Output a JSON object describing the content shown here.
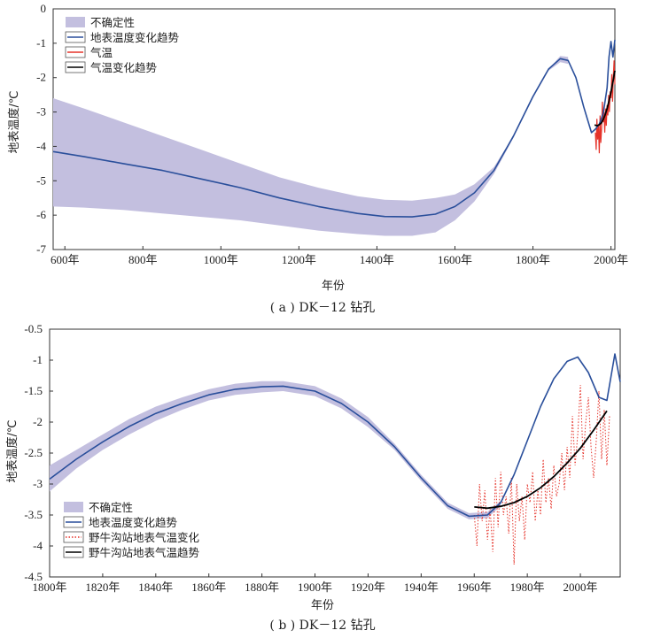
{
  "chart_data": [
    {
      "type": "line",
      "xlabel": "年份",
      "ylabel": "地表温度/℃",
      "caption": "( a ) DK－12 钻孔",
      "xlim": [
        570,
        2010
      ],
      "ylim": [
        -7,
        0
      ],
      "xticks": [
        600,
        800,
        1000,
        1200,
        1400,
        1600,
        1800,
        2000
      ],
      "xtick_labels": [
        "600年",
        "800年",
        "1000年",
        "1200年",
        "1400年",
        "1600年",
        "1800年",
        "2000年"
      ],
      "yticks": [
        0,
        -1,
        -2,
        -3,
        -4,
        -5,
        -6,
        -7
      ],
      "ytick_labels": [
        "0",
        "-1",
        "-2",
        "-3",
        "-4",
        "-5",
        "-6",
        "-7"
      ],
      "legend": [
        "不确定性",
        "地表温度变化趋势",
        "气温",
        "气温变化趋势"
      ],
      "legend_position": "top-left",
      "colors": {
        "band": "#c3bfdf",
        "surface": "#2a4f9b",
        "air": "#e5332a",
        "air_trend": "#000000"
      },
      "series": [
        {
          "name": "地表温度变化趋势",
          "x": [
            570,
            650,
            750,
            850,
            950,
            1050,
            1150,
            1250,
            1350,
            1420,
            1490,
            1550,
            1600,
            1650,
            1700,
            1750,
            1800,
            1840,
            1870,
            1890,
            1910,
            1930,
            1950,
            1960,
            1970,
            1980,
            1990,
            1995,
            2000,
            2005,
            2010
          ],
          "y": [
            -4.15,
            -4.3,
            -4.5,
            -4.7,
            -4.95,
            -5.2,
            -5.5,
            -5.75,
            -5.95,
            -6.04,
            -6.05,
            -5.97,
            -5.75,
            -5.35,
            -4.7,
            -3.7,
            -2.55,
            -1.75,
            -1.45,
            -1.5,
            -2.0,
            -2.85,
            -3.6,
            -3.5,
            -3.35,
            -3.05,
            -2.3,
            -1.4,
            -0.95,
            -1.4,
            -0.9
          ]
        },
        {
          "name": "不确定性",
          "x": [
            570,
            650,
            750,
            850,
            950,
            1050,
            1150,
            1250,
            1350,
            1420,
            1490,
            1550,
            1600,
            1650,
            1700,
            1750,
            1800,
            1840,
            1870,
            1890
          ],
          "upper": [
            -2.6,
            -2.9,
            -3.3,
            -3.7,
            -4.1,
            -4.5,
            -4.9,
            -5.2,
            -5.45,
            -5.55,
            -5.58,
            -5.5,
            -5.4,
            -5.1,
            -4.6,
            -3.7,
            -2.55,
            -1.75,
            -1.37,
            -1.4
          ],
          "lower": [
            -5.75,
            -5.78,
            -5.85,
            -5.95,
            -6.05,
            -6.15,
            -6.3,
            -6.45,
            -6.55,
            -6.6,
            -6.6,
            -6.5,
            -6.15,
            -5.6,
            -4.8,
            -3.75,
            -2.6,
            -1.8,
            -1.55,
            -1.6
          ]
        },
        {
          "name": "气温",
          "x": [
            1960,
            1962,
            1964,
            1966,
            1968,
            1970,
            1972,
            1974,
            1976,
            1978,
            1980,
            1982,
            1984,
            1986,
            1988,
            1990,
            1992,
            1994,
            1996,
            1998,
            2000,
            2002,
            2004,
            2006,
            2008,
            2010
          ],
          "y": [
            -3.6,
            -4.1,
            -3.2,
            -3.8,
            -3.4,
            -4.2,
            -3.1,
            -3.9,
            -3.5,
            -2.7,
            -3.3,
            -3.0,
            -3.6,
            -2.9,
            -3.4,
            -2.8,
            -3.1,
            -2.5,
            -3.0,
            -2.4,
            -2.6,
            -1.9,
            -2.7,
            -2.0,
            -1.5,
            -2.2
          ]
        },
        {
          "name": "气温变化趋势",
          "x": [
            1958,
            1965,
            1970,
            1975,
            1980,
            1985,
            1990,
            1995,
            2000,
            2005,
            2010
          ],
          "y": [
            -3.38,
            -3.4,
            -3.37,
            -3.32,
            -3.22,
            -3.08,
            -2.9,
            -2.68,
            -2.42,
            -2.12,
            -1.8
          ]
        }
      ]
    },
    {
      "type": "line",
      "xlabel": "年份",
      "ylabel": "地表温度/℃",
      "caption": "( b ) DK－12 钻孔",
      "xlim": [
        1800,
        2015
      ],
      "ylim": [
        -4.5,
        -0.5
      ],
      "xticks": [
        1800,
        1820,
        1840,
        1860,
        1880,
        1900,
        1920,
        1940,
        1960,
        1980,
        2000
      ],
      "xtick_labels": [
        "1800年",
        "1820年",
        "1840年",
        "1860年",
        "1880年",
        "1900年",
        "1920年",
        "1940年",
        "1960年",
        "1980年",
        "2000年"
      ],
      "yticks": [
        -0.5,
        -1,
        -1.5,
        -2,
        -2.5,
        -3,
        -3.5,
        -4,
        -4.5
      ],
      "ytick_labels": [
        "-0.5",
        "-1",
        "-1.5",
        "-2",
        "-2.5",
        "-3",
        "-3.5",
        "-4",
        "-4.5"
      ],
      "legend": [
        "不确定性",
        "地表温度变化趋势",
        "野牛沟站地表气温变化",
        "野牛沟站地表气温趋势"
      ],
      "legend_position": "bottom-left",
      "colors": {
        "band": "#c3bfdf",
        "surface": "#2a4f9b",
        "air": "#e5332a",
        "air_trend": "#000000"
      },
      "series": [
        {
          "name": "地表温度变化趋势",
          "x": [
            1800,
            1810,
            1820,
            1830,
            1840,
            1850,
            1860,
            1870,
            1880,
            1888,
            1900,
            1910,
            1920,
            1930,
            1940,
            1950,
            1958,
            1965,
            1970,
            1975,
            1980,
            1985,
            1990,
            1995,
            1999,
            2003,
            2007,
            2010,
            2013,
            2015
          ],
          "y": [
            -2.92,
            -2.6,
            -2.32,
            -2.07,
            -1.86,
            -1.7,
            -1.56,
            -1.47,
            -1.43,
            -1.42,
            -1.5,
            -1.7,
            -2.0,
            -2.4,
            -2.9,
            -3.35,
            -3.52,
            -3.5,
            -3.3,
            -2.85,
            -2.3,
            -1.75,
            -1.3,
            -1.02,
            -0.95,
            -1.2,
            -1.6,
            -1.65,
            -0.9,
            -1.35
          ]
        },
        {
          "name": "不确定性",
          "x": [
            1800,
            1810,
            1820,
            1830,
            1840,
            1850,
            1860,
            1870,
            1880,
            1888,
            1900,
            1910,
            1920,
            1930,
            1940,
            1950,
            1958,
            1965,
            1970
          ],
          "upper": [
            -2.7,
            -2.45,
            -2.2,
            -1.95,
            -1.75,
            -1.6,
            -1.47,
            -1.38,
            -1.34,
            -1.34,
            -1.42,
            -1.62,
            -1.92,
            -2.35,
            -2.85,
            -3.3,
            -3.47,
            -3.45,
            -3.27
          ],
          "lower": [
            -3.12,
            -2.75,
            -2.45,
            -2.2,
            -1.98,
            -1.8,
            -1.65,
            -1.56,
            -1.52,
            -1.5,
            -1.58,
            -1.78,
            -2.08,
            -2.45,
            -2.95,
            -3.4,
            -3.57,
            -3.55,
            -3.35
          ]
        },
        {
          "name": "野牛沟站地表气温变化",
          "x": [
            1960,
            1961,
            1962,
            1963,
            1964,
            1965,
            1966,
            1967,
            1968,
            1969,
            1970,
            1971,
            1972,
            1973,
            1974,
            1975,
            1976,
            1977,
            1978,
            1979,
            1980,
            1981,
            1982,
            1983,
            1984,
            1985,
            1986,
            1987,
            1988,
            1989,
            1990,
            1991,
            1992,
            1993,
            1994,
            1995,
            1996,
            1997,
            1998,
            1999,
            2000,
            2001,
            2002,
            2003,
            2004,
            2005,
            2006,
            2007,
            2008,
            2009,
            2010,
            2011
          ],
          "y": [
            -3.5,
            -4.0,
            -3.0,
            -3.6,
            -3.1,
            -3.9,
            -3.4,
            -4.1,
            -2.9,
            -3.7,
            -2.8,
            -3.5,
            -3.2,
            -3.8,
            -2.9,
            -4.3,
            -3.0,
            -3.6,
            -3.2,
            -3.9,
            -3.0,
            -3.3,
            -2.8,
            -3.6,
            -3.1,
            -3.5,
            -2.6,
            -3.3,
            -2.9,
            -3.4,
            -2.7,
            -3.2,
            -3.0,
            -2.5,
            -3.1,
            -2.4,
            -2.9,
            -1.9,
            -2.7,
            -2.2,
            -1.4,
            -2.6,
            -2.0,
            -1.6,
            -2.4,
            -2.9,
            -2.3,
            -1.5,
            -2.6,
            -1.8,
            -2.7,
            -1.9
          ]
        },
        {
          "name": "野牛沟站地表气温趋势",
          "x": [
            1960,
            1965,
            1970,
            1975,
            1980,
            1985,
            1990,
            1995,
            2000,
            2005,
            2010
          ],
          "y": [
            -3.37,
            -3.39,
            -3.36,
            -3.3,
            -3.2,
            -3.06,
            -2.88,
            -2.66,
            -2.42,
            -2.13,
            -1.82
          ]
        }
      ]
    }
  ]
}
